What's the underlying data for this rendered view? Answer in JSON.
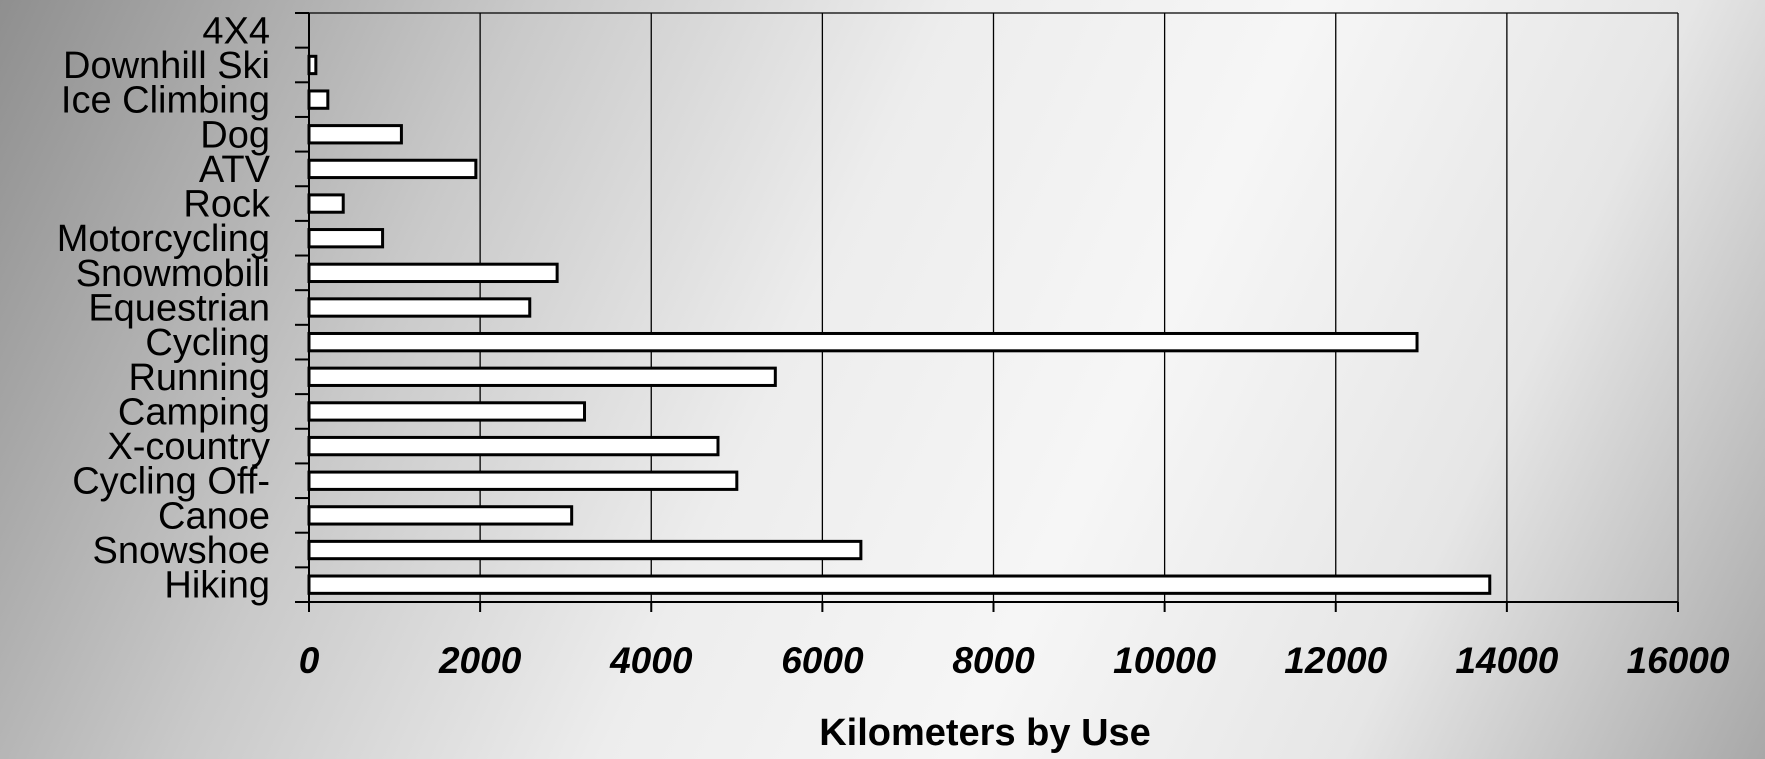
{
  "chart_data": {
    "type": "bar",
    "orientation": "horizontal",
    "categories": [
      "4X4",
      "Downhill Ski",
      "Ice Climbing",
      "Dog",
      "ATV",
      "Rock",
      "Motorcycling",
      "Snowmobili",
      "Equestrian",
      "Cycling",
      "Running",
      "Camping",
      "X-country",
      "Cycling Off-",
      "Canoe",
      "Snowshoe",
      "Hiking"
    ],
    "values": [
      0,
      80,
      220,
      1080,
      1950,
      400,
      860,
      2900,
      2580,
      12950,
      5450,
      3220,
      4780,
      5000,
      3070,
      6450,
      13800
    ],
    "xlim": [
      0,
      16000
    ],
    "xticks": [
      "0",
      "2000",
      "4000",
      "6000",
      "8000",
      "10000",
      "12000",
      "14000",
      "16000"
    ],
    "xlabel": "Kilometers by Use",
    "grid": "vertical",
    "bar_color": "#ffffff",
    "bar_stroke": "#000000"
  }
}
